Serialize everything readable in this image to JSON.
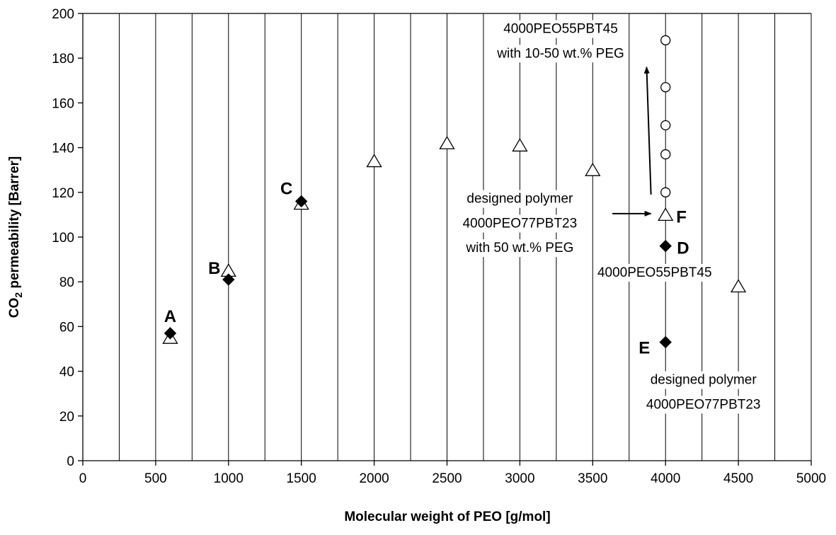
{
  "chart_data": {
    "type": "scatter",
    "xlabel": "Molecular weight of PEO [g/mol]",
    "ylabel_prefix": "CO",
    "ylabel_sub": "2",
    "ylabel_suffix": " permeability [Barrer]",
    "xlim": [
      0,
      5000
    ],
    "ylim": [
      0,
      200
    ],
    "x_ticks": [
      0,
      500,
      1000,
      1500,
      2000,
      2500,
      3000,
      3500,
      4000,
      4500,
      5000
    ],
    "y_ticks": [
      0,
      20,
      40,
      60,
      80,
      100,
      120,
      140,
      160,
      180,
      200
    ],
    "x_gridlines": [
      250,
      500,
      750,
      1000,
      1250,
      1500,
      1750,
      2000,
      2250,
      2500,
      2750,
      3000,
      3250,
      3500,
      3750,
      4000,
      4250,
      4500,
      4750,
      5000
    ],
    "grid": "vertical",
    "series": [
      {
        "marker": "triangle-open",
        "x": [
          600,
          1000,
          1500,
          2000,
          2500,
          3000,
          3500,
          4000,
          4500
        ],
        "y": [
          55,
          85,
          115,
          134,
          142,
          141,
          130,
          110,
          78
        ]
      },
      {
        "marker": "diamond-filled",
        "x": [
          600,
          1000,
          1500,
          4000,
          4000
        ],
        "y": [
          57,
          81,
          116,
          96,
          53
        ]
      },
      {
        "marker": "circle-open",
        "x": [
          4000,
          4000,
          4000,
          4000,
          4000
        ],
        "y": [
          120,
          137,
          150,
          167,
          188
        ]
      }
    ],
    "point_labels": [
      {
        "text": "A",
        "x": 600,
        "y": 57
      },
      {
        "text": "B",
        "x": 1000,
        "y": 81
      },
      {
        "text": "C",
        "x": 1500,
        "y": 116
      },
      {
        "text": "D",
        "x": 4000,
        "y": 96
      },
      {
        "text": "E",
        "x": 4000,
        "y": 53
      },
      {
        "text": "F",
        "x": 4000,
        "y": 110
      }
    ],
    "annotations": [
      {
        "text": "4000PEO55PBT45",
        "x": 3280,
        "y": 193.5
      },
      {
        "text": "with 10-50 wt.% PEG",
        "x": 3280,
        "y": 182.5
      },
      {
        "text": "designed polymer",
        "x": 3000,
        "y": 117.5
      },
      {
        "text": "4000PEO77PBT23",
        "x": 3000,
        "y": 106.5
      },
      {
        "text": "with 50 wt.% PEG",
        "x": 3000,
        "y": 95.5
      },
      {
        "text": "4000PEO55PBT45",
        "x": 3925,
        "y": 84.5
      },
      {
        "text": "designed polymer",
        "x": 4260,
        "y": 36.5
      },
      {
        "text": "4000PEO77PBT23",
        "x": 4260,
        "y": 25.5
      }
    ],
    "arrows": [
      {
        "from": [
          3900,
          119
        ],
        "to": [
          3870,
          176
        ]
      },
      {
        "from": [
          3635,
          110.5
        ],
        "to": [
          3900,
          110.5
        ]
      }
    ]
  }
}
